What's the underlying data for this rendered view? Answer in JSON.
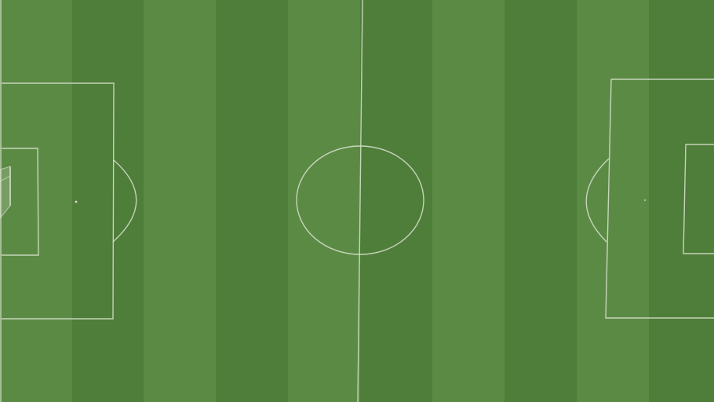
{
  "pitch": {
    "colors": {
      "light_stripe": "#5b8a45",
      "dark_stripe": "#4f7d3a",
      "line": "#d9e3cf"
    },
    "stripe_count": 10
  }
}
